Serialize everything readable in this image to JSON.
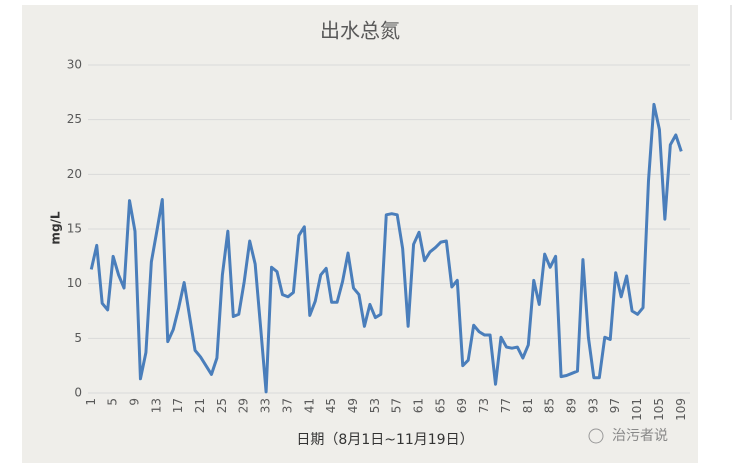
{
  "chart_data": {
    "type": "line",
    "title": "出水总氮",
    "y_label": "mg/L",
    "x_label": "日期（8月1日~11月19日）",
    "watermark": "治污者说",
    "categories": [
      1,
      null,
      null,
      null,
      5,
      null,
      null,
      null,
      9,
      null,
      null,
      null,
      13,
      null,
      null,
      null,
      17,
      null,
      null,
      null,
      21,
      null,
      null,
      null,
      25,
      null,
      null,
      null,
      29,
      null,
      null,
      null,
      33,
      null,
      null,
      null,
      37,
      null,
      null,
      null,
      41,
      null,
      null,
      null,
      45,
      null,
      null,
      null,
      49,
      null,
      null,
      null,
      53,
      null,
      null,
      null,
      57,
      null,
      null,
      null,
      61,
      null,
      null,
      null,
      65,
      null,
      null,
      null,
      69,
      null,
      null,
      null,
      73,
      null,
      null,
      null,
      77,
      null,
      null,
      null,
      81,
      null,
      null,
      null,
      85,
      null,
      null,
      null,
      89,
      null,
      null,
      null,
      93,
      null,
      null,
      null,
      97,
      null,
      null,
      null,
      101,
      null,
      null,
      null,
      105,
      null,
      null,
      null,
      109
    ],
    "values": [
      11.3,
      13.5,
      8.2,
      7.6,
      12.5,
      10.8,
      9.6,
      17.6,
      14.8,
      1.3,
      3.7,
      12.0,
      14.8,
      17.7,
      4.7,
      5.8,
      7.8,
      10.1,
      7.0,
      3.9,
      3.3,
      2.5,
      1.7,
      3.2,
      10.8,
      14.8,
      7.0,
      7.2,
      10.2,
      13.9,
      11.8,
      6.0,
      0.1,
      11.5,
      11.1,
      9.0,
      8.8,
      9.2,
      14.4,
      15.2,
      7.1,
      8.4,
      10.8,
      11.4,
      8.3,
      8.3,
      10.2,
      12.8,
      9.6,
      9.0,
      6.1,
      8.1,
      6.9,
      7.2,
      16.3,
      16.4,
      16.3,
      13.2,
      6.1,
      13.6,
      14.7,
      12.1,
      12.9,
      13.3,
      13.8,
      13.9,
      9.7,
      10.3,
      2.5,
      3.0,
      6.2,
      5.6,
      5.3,
      5.3,
      0.8,
      5.1,
      4.2,
      4.1,
      4.2,
      3.2,
      4.4,
      10.3,
      8.1,
      12.7,
      11.5,
      12.5,
      1.5,
      1.6,
      1.8,
      2.0,
      12.2,
      5.1,
      1.4,
      1.4,
      5.1,
      4.9,
      11.0,
      8.8,
      10.7,
      7.5,
      7.2,
      7.8,
      19.4,
      26.4,
      24.1,
      15.9,
      22.7,
      23.6,
      22.1
    ],
    "color": "#4a7ebb",
    "ylim": [
      0,
      30
    ],
    "yticks": [
      0,
      5,
      10,
      15,
      20,
      25,
      30
    ],
    "grid": true
  }
}
